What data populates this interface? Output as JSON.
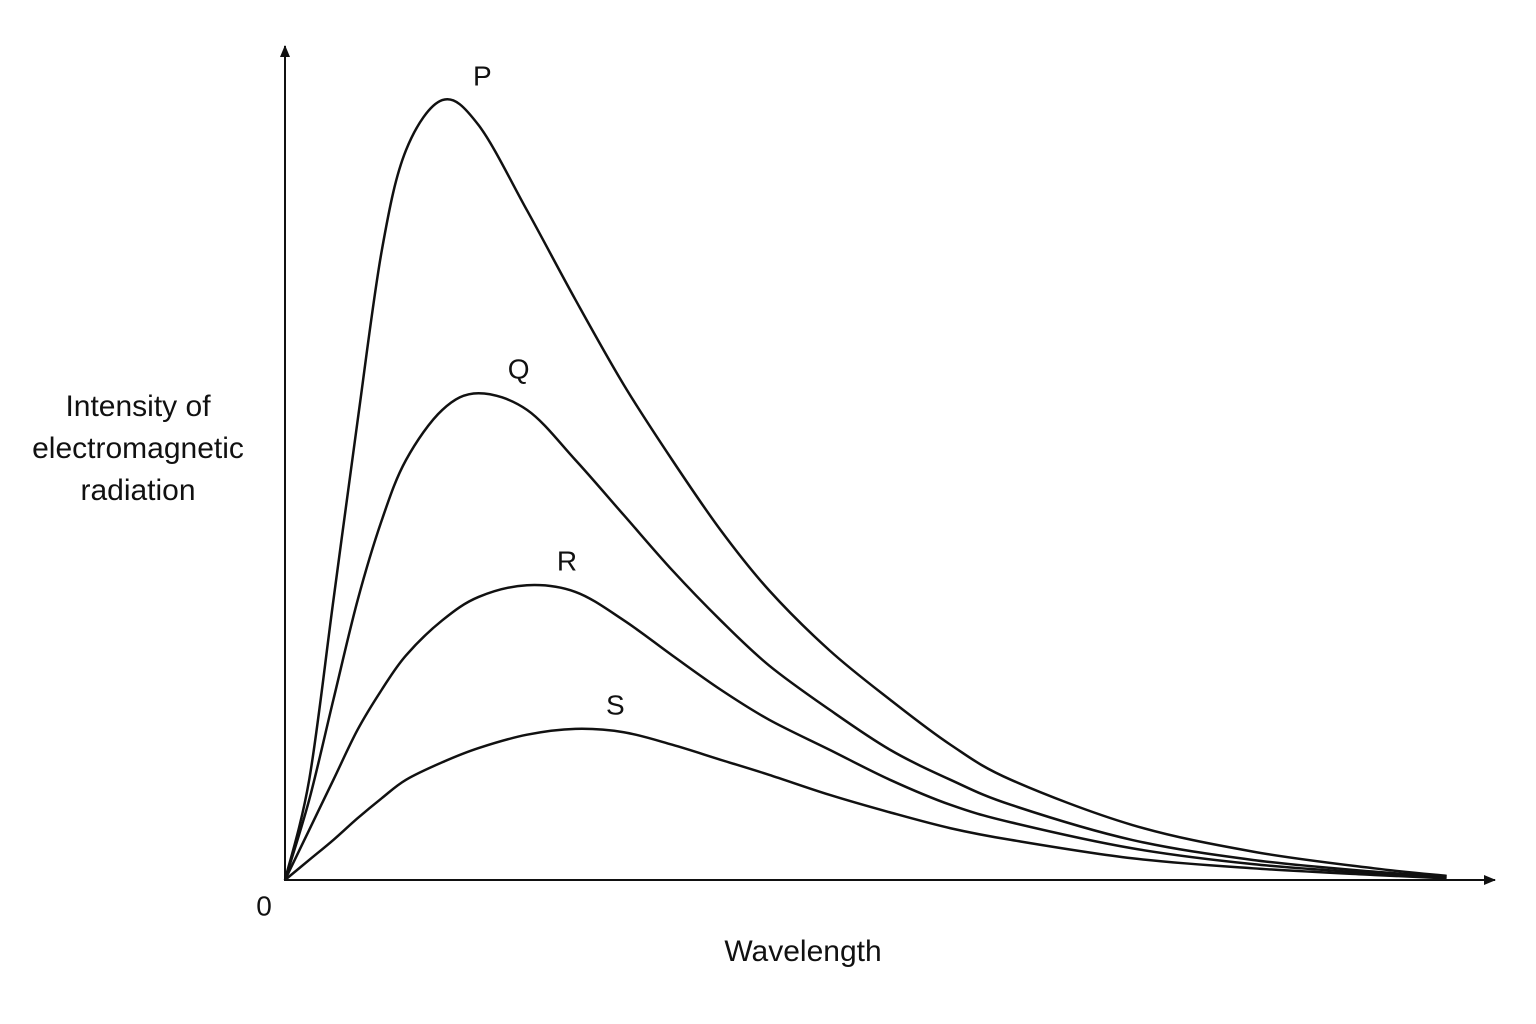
{
  "chart_data": {
    "type": "line",
    "x_label": "Wavelength",
    "y_label": "Intensity of electromagnetic radiation",
    "x": [
      0,
      2,
      4,
      6,
      8,
      10,
      13,
      16,
      20,
      24,
      28,
      32,
      36,
      40,
      45,
      50,
      55,
      60,
      70,
      80,
      90,
      96
    ],
    "series": [
      {
        "name": "P",
        "color": "#111111",
        "values": [
          0,
          12,
          33.5,
          55,
          75.4,
          87.4,
          93.4,
          90.4,
          80.2,
          69.5,
          59.3,
          50.3,
          41.9,
          34.7,
          27.5,
          21.6,
          16.2,
          12,
          6.6,
          3.4,
          1.4,
          0.5
        ]
      },
      {
        "name": "Q",
        "color": "#111111",
        "values": [
          0,
          9.6,
          21.6,
          33.5,
          43.1,
          50.3,
          56.3,
          58.3,
          56.3,
          50.3,
          43.7,
          37.1,
          31.1,
          25.7,
          20.4,
          15.6,
          12,
          9,
          4.8,
          2.4,
          1,
          0.4
        ]
      },
      {
        "name": "R",
        "color": "#111111",
        "values": [
          0,
          6,
          12,
          18,
          22.8,
          26.9,
          31.1,
          33.9,
          35.3,
          34.5,
          31.1,
          26.9,
          22.8,
          19.2,
          15.6,
          12,
          9,
          6.9,
          3.8,
          1.9,
          0.8,
          0.4
        ]
      },
      {
        "name": "S",
        "color": "#111111",
        "values": [
          0,
          2.4,
          4.8,
          7.4,
          9.8,
          12,
          14.1,
          15.8,
          17.4,
          18.1,
          17.7,
          16.2,
          14.4,
          12.6,
          10.2,
          8.1,
          6.2,
          4.8,
          2.6,
          1.4,
          0.6,
          0.2
        ]
      }
    ],
    "xlim": [
      0,
      100
    ],
    "ylim": [
      0,
      100
    ],
    "xticks": [
      0
    ],
    "grid": false
  }
}
